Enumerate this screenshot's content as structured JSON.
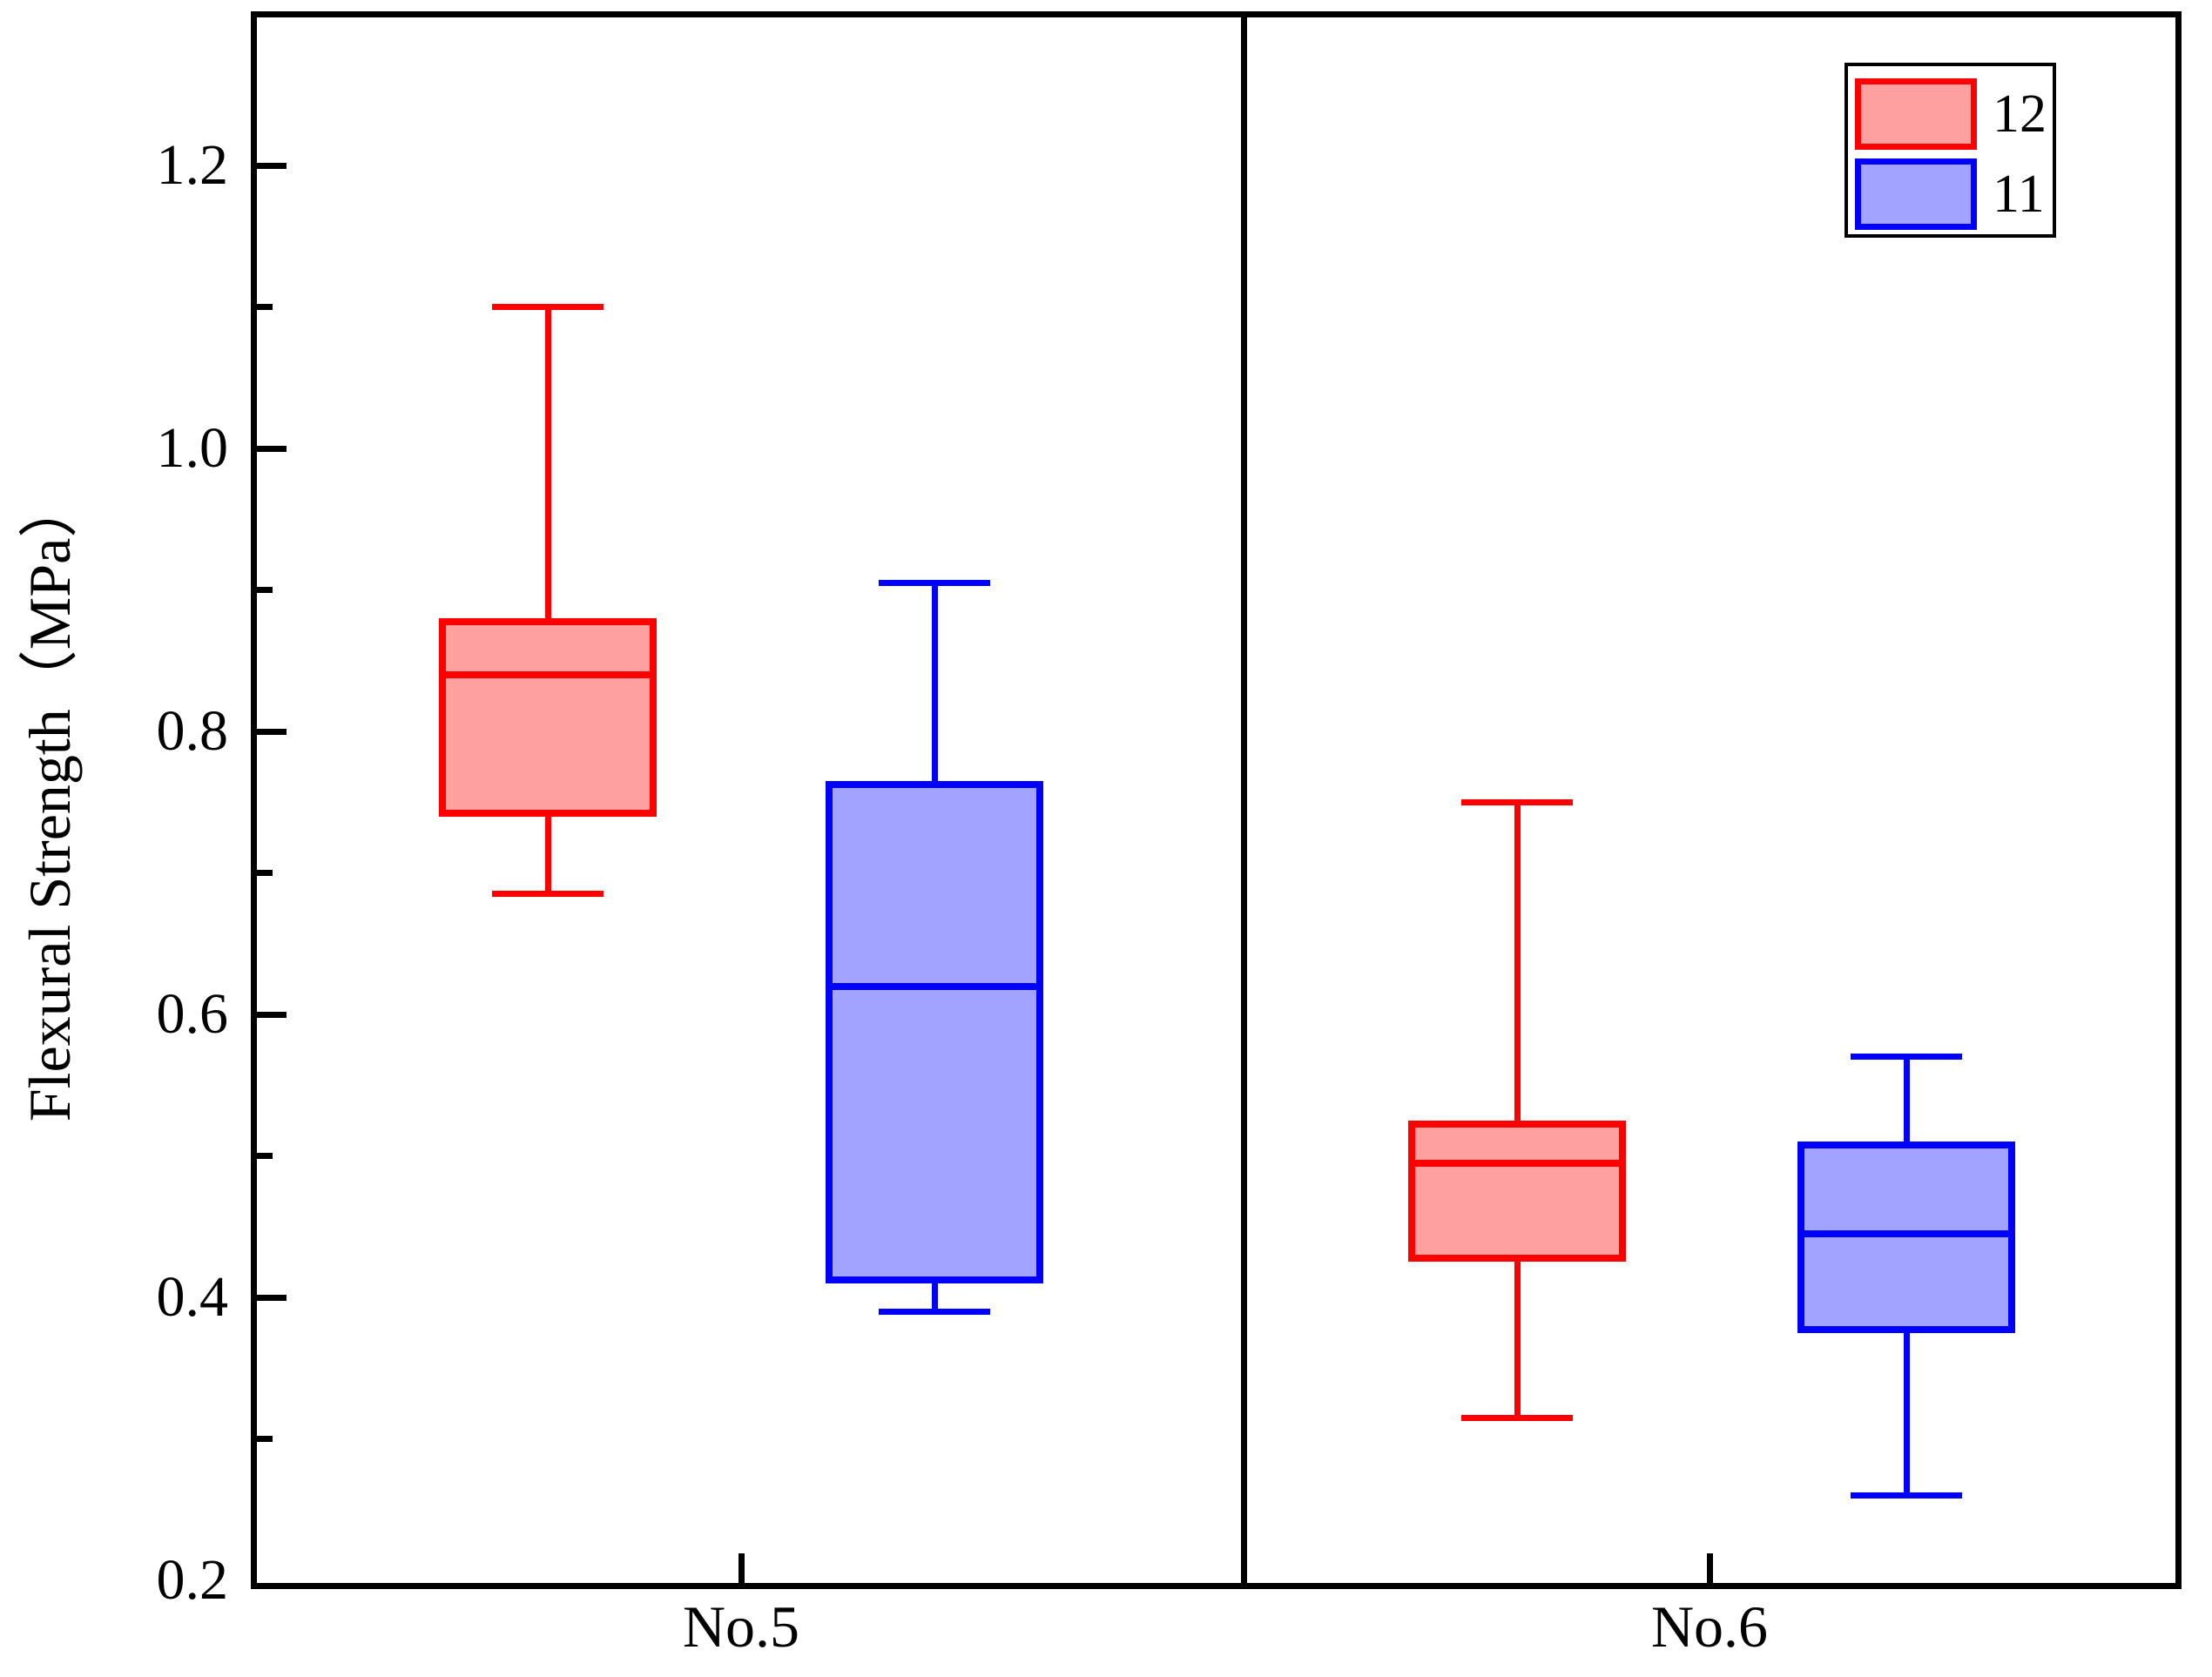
{
  "chart_data": {
    "type": "boxplot",
    "title": "",
    "y_axis": {
      "label": "Flexural Strength（MPa）",
      "unit": "MPa",
      "min": 0.2,
      "max": 1.305,
      "major_ticks": [
        0.2,
        0.4,
        0.6,
        0.8,
        1.0,
        1.2
      ],
      "major_tick_labels": [
        "0.2",
        "0.4",
        "0.6",
        "0.8",
        "1.0",
        "1.2"
      ],
      "minor_ticks": [
        0.3,
        0.5,
        0.7,
        0.9,
        1.1
      ],
      "grid": false
    },
    "x_axis": {
      "groups": [
        "No.5",
        "No.6"
      ]
    },
    "legend": {
      "position": "top-right",
      "entries": [
        {
          "label": "12",
          "stroke": "#ff0000",
          "fill": "#ffa0a0"
        },
        {
          "label": "11",
          "stroke": "#0000ff",
          "fill": "#a2a2ff"
        }
      ]
    },
    "series": [
      {
        "name": "12",
        "stroke": "#ff0000",
        "fill": "#ffa0a0",
        "boxes": [
          {
            "group": "No.5",
            "whisker_low": 0.685,
            "q1": 0.74,
            "median": 0.84,
            "q3": 0.88,
            "whisker_high": 1.1
          },
          {
            "group": "No.6",
            "whisker_low": 0.315,
            "q1": 0.425,
            "median": 0.495,
            "q3": 0.525,
            "whisker_high": 0.75
          }
        ]
      },
      {
        "name": "11",
        "stroke": "#0000ff",
        "fill": "#a2a2ff",
        "boxes": [
          {
            "group": "No.5",
            "whisker_low": 0.39,
            "q1": 0.41,
            "median": 0.62,
            "q3": 0.765,
            "whisker_high": 0.905
          },
          {
            "group": "No.6",
            "whisker_low": 0.26,
            "q1": 0.375,
            "median": 0.445,
            "q3": 0.51,
            "whisker_high": 0.57
          }
        ]
      }
    ]
  }
}
